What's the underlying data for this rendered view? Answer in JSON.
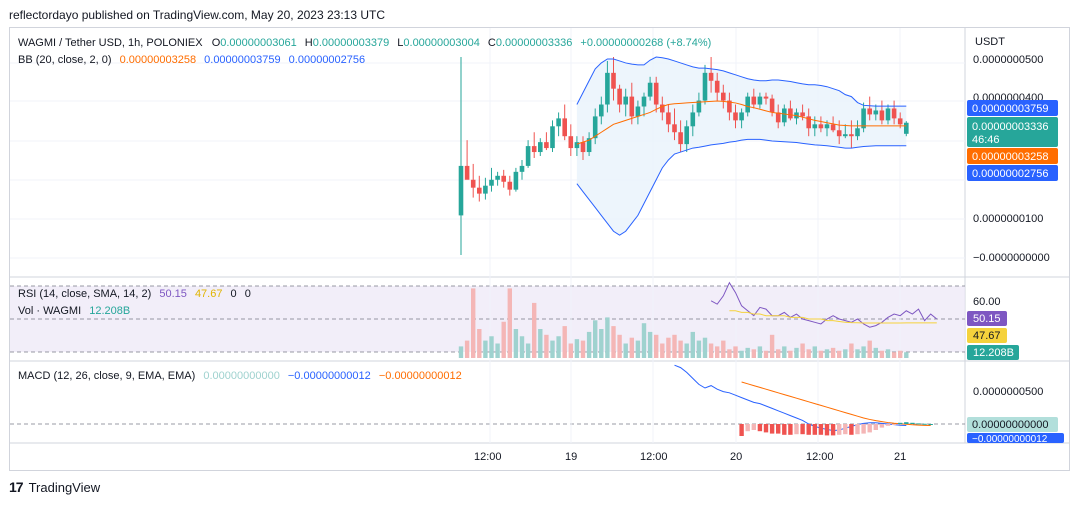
{
  "header": {
    "published": "reflectordayo published on TradingView.com, May 20, 2023 23:13 UTC"
  },
  "footer": {
    "brand": "TradingView",
    "logo_glyph": "17"
  },
  "colors": {
    "up": "#26a69a",
    "down": "#ef5350",
    "bb_band": "#2962ff",
    "bb_basis": "#ff6d00",
    "bb_fill": "#e8f2fb",
    "rsi": "#7e57c2",
    "rsi_sma": "#f5d23c",
    "macd": "#2962ff",
    "signal": "#ff6d00",
    "rsi_bg": "#ede7f6",
    "vol_up": "#9fd2cf",
    "vol_down": "#f4b6b6"
  },
  "legend": {
    "symbol": "WAGMI / Tether USD, 1h, POLONIEX",
    "o_label": "O",
    "o": "0.00000003061",
    "h_label": "H",
    "h": "0.00000003379",
    "l_label": "L",
    "l": "0.00000003004",
    "c_label": "C",
    "c": "0.00000003336",
    "chg": "+0.00000000268 (+8.74%)",
    "bb": "BB (20, close, 2, 0)",
    "bb_basis": "0.00000003258",
    "bb_upper": "0.00000003759",
    "bb_lower": "0.00000002756",
    "rsi": "RSI (14, close, SMA, 14, 2)",
    "rsi_val": "50.15",
    "rsi_sma": "47.67",
    "rsi_z1": "0",
    "rsi_z2": "0",
    "vol": "Vol · WAGMI",
    "vol_val": "12.208B",
    "macd": "MACD (12, 26, close, 9, EMA, EMA)",
    "macd_hist": "0.00000000000",
    "macd_line": "−0.00000000012",
    "macd_signal": "−0.00000000012"
  },
  "axis": {
    "currency": "USDT",
    "price_ticks": [
      "0.0000000500",
      "0.0000000400",
      "0.0000000100",
      "−0.0000000000"
    ],
    "rsi_ticks": [
      "60.00"
    ],
    "macd_ticks": [
      "0.0000000500"
    ],
    "time_ticks": [
      "12:00",
      "19",
      "12:00",
      "20",
      "12:00",
      "21"
    ]
  },
  "price_labels": {
    "upper": "0.00000003759",
    "close": "0.00000003336",
    "countdown": "46:46",
    "basis": "0.00000003258",
    "lower": "0.00000002756"
  },
  "rsi_labels": {
    "rsi": "50.15",
    "sma": "47.67",
    "vol": "12.208B"
  },
  "macd_labels": {
    "zero": "0.00000000000",
    "neg": "−0.00000000012"
  },
  "chart_data": [
    {
      "type": "candlestick",
      "title": "WAGMI / Tether USD, 1h, POLONIEX",
      "y_unit": "USDT (x1e-8)",
      "ylim": [
        -0.2,
        5.3
      ],
      "candles_ohlc": [
        [
          1.0,
          5.0,
          0.0,
          2.25
        ],
        [
          2.25,
          2.9,
          2.0,
          1.9
        ],
        [
          1.9,
          2.3,
          1.45,
          1.7
        ],
        [
          1.7,
          2.0,
          1.35,
          1.55
        ],
        [
          1.55,
          1.95,
          1.4,
          1.75
        ],
        [
          1.75,
          2.2,
          1.6,
          1.9
        ],
        [
          1.9,
          2.1,
          1.75,
          2.0
        ],
        [
          2.0,
          2.15,
          1.7,
          1.85
        ],
        [
          1.85,
          2.0,
          1.5,
          1.65
        ],
        [
          1.65,
          2.2,
          1.6,
          2.1
        ],
        [
          2.1,
          2.4,
          1.9,
          2.25
        ],
        [
          2.25,
          2.9,
          2.2,
          2.75
        ],
        [
          2.75,
          3.1,
          2.45,
          2.6
        ],
        [
          2.6,
          2.95,
          2.5,
          2.85
        ],
        [
          2.85,
          3.1,
          2.65,
          2.7
        ],
        [
          2.7,
          3.4,
          2.6,
          3.25
        ],
        [
          3.25,
          3.6,
          3.0,
          3.45
        ],
        [
          3.45,
          3.8,
          2.9,
          3.0
        ],
        [
          3.0,
          3.3,
          2.5,
          2.7
        ],
        [
          2.7,
          3.0,
          2.5,
          2.85
        ],
        [
          2.85,
          3.0,
          2.4,
          2.6
        ],
        [
          2.6,
          3.1,
          2.5,
          2.95
        ],
        [
          2.95,
          3.7,
          2.8,
          3.5
        ],
        [
          3.5,
          4.0,
          3.3,
          3.8
        ],
        [
          3.8,
          4.9,
          3.6,
          4.6
        ],
        [
          4.6,
          5.0,
          3.9,
          4.2
        ],
        [
          4.2,
          4.3,
          3.6,
          3.8
        ],
        [
          3.8,
          4.2,
          3.5,
          4.0
        ],
        [
          4.0,
          4.35,
          3.3,
          3.5
        ],
        [
          3.5,
          3.9,
          3.3,
          3.75
        ],
        [
          3.75,
          4.1,
          3.5,
          4.0
        ],
        [
          4.0,
          4.5,
          3.9,
          4.35
        ],
        [
          4.35,
          4.5,
          3.6,
          3.8
        ],
        [
          3.8,
          4.0,
          3.4,
          3.6
        ],
        [
          3.6,
          3.8,
          3.1,
          3.3
        ],
        [
          3.3,
          3.7,
          2.9,
          3.1
        ],
        [
          3.1,
          3.4,
          2.6,
          2.8
        ],
        [
          2.8,
          3.4,
          2.6,
          3.25
        ],
        [
          3.25,
          3.8,
          3.0,
          3.6
        ],
        [
          3.6,
          4.1,
          3.5,
          3.9
        ],
        [
          3.9,
          4.8,
          3.8,
          4.6
        ],
        [
          4.6,
          5.0,
          4.1,
          4.4
        ],
        [
          4.4,
          4.6,
          3.9,
          4.1
        ],
        [
          4.1,
          4.3,
          3.7,
          3.9
        ],
        [
          3.9,
          4.1,
          3.4,
          3.6
        ],
        [
          3.6,
          3.8,
          3.2,
          3.4
        ],
        [
          3.4,
          3.7,
          3.2,
          3.6
        ],
        [
          3.6,
          4.1,
          3.5,
          4.0
        ],
        [
          4.0,
          4.2,
          3.7,
          3.8
        ],
        [
          3.8,
          4.1,
          3.7,
          4.0
        ],
        [
          4.0,
          4.1,
          3.8,
          3.95
        ],
        [
          3.95,
          4.05,
          3.5,
          3.6
        ],
        [
          3.6,
          3.8,
          3.2,
          3.35
        ],
        [
          3.35,
          3.8,
          3.25,
          3.7
        ],
        [
          3.7,
          3.9,
          3.4,
          3.45
        ],
        [
          3.45,
          3.7,
          3.3,
          3.6
        ],
        [
          3.6,
          3.8,
          3.4,
          3.5
        ],
        [
          3.5,
          3.7,
          3.0,
          3.2
        ],
        [
          3.2,
          3.5,
          3.0,
          3.3
        ],
        [
          3.3,
          3.5,
          3.1,
          3.2
        ],
        [
          3.2,
          3.4,
          3.0,
          3.3
        ],
        [
          3.3,
          3.5,
          3.1,
          3.15
        ],
        [
          3.15,
          3.4,
          2.8,
          3.0
        ],
        [
          3.0,
          3.3,
          2.95,
          3.05
        ],
        [
          3.05,
          3.4,
          2.7,
          3.0
        ],
        [
          3.0,
          3.4,
          2.9,
          3.2
        ],
        [
          3.2,
          3.85,
          3.1,
          3.7
        ],
        [
          3.7,
          4.0,
          3.4,
          3.55
        ],
        [
          3.55,
          3.8,
          3.4,
          3.65
        ],
        [
          3.65,
          3.9,
          3.3,
          3.4
        ],
        [
          3.4,
          3.8,
          3.3,
          3.7
        ],
        [
          3.7,
          3.9,
          3.3,
          3.45
        ],
        [
          3.45,
          3.6,
          3.2,
          3.3
        ],
        [
          3.06,
          3.38,
          3.0,
          3.34
        ]
      ],
      "bb_start_index": 19,
      "bb_upper": [
        3.8,
        4.1,
        4.4,
        4.7,
        4.85,
        4.95,
        4.95,
        4.9,
        4.85,
        4.82,
        4.8,
        4.8,
        4.92,
        5.0,
        4.98,
        4.95,
        4.9,
        4.85,
        4.8,
        4.75,
        4.72,
        4.72,
        4.7,
        4.68,
        4.65,
        4.6,
        4.55,
        4.5,
        4.45,
        4.42,
        4.4,
        4.4,
        4.42,
        4.42,
        4.4,
        4.38,
        4.35,
        4.32,
        4.3,
        4.3,
        4.28,
        4.25,
        4.2,
        4.15,
        4.05,
        4.0,
        3.85,
        3.78,
        3.77,
        3.76,
        3.76,
        3.76,
        3.76,
        3.76,
        3.76
      ],
      "bb_basis": [
        2.8,
        2.85,
        2.9,
        3.0,
        3.1,
        3.2,
        3.3,
        3.35,
        3.4,
        3.45,
        3.5,
        3.55,
        3.6,
        3.68,
        3.75,
        3.8,
        3.82,
        3.83,
        3.84,
        3.85,
        3.86,
        3.87,
        3.88,
        3.89,
        3.88,
        3.86,
        3.84,
        3.8,
        3.75,
        3.72,
        3.68,
        3.64,
        3.6,
        3.58,
        3.56,
        3.54,
        3.52,
        3.48,
        3.44,
        3.4,
        3.37,
        3.34,
        3.31,
        3.28,
        3.27,
        3.26,
        3.26,
        3.26,
        3.26,
        3.26,
        3.26,
        3.26,
        3.26,
        3.26,
        3.26
      ],
      "bb_lower": [
        1.8,
        1.6,
        1.4,
        1.2,
        1.0,
        0.8,
        0.6,
        0.5,
        0.6,
        0.8,
        1.0,
        1.3,
        1.6,
        1.9,
        2.2,
        2.4,
        2.55,
        2.6,
        2.65,
        2.7,
        2.72,
        2.75,
        2.78,
        2.8,
        2.82,
        2.85,
        2.87,
        2.9,
        2.92,
        2.92,
        2.92,
        2.9,
        2.88,
        2.87,
        2.86,
        2.85,
        2.84,
        2.82,
        2.8,
        2.78,
        2.77,
        2.76,
        2.74,
        2.72,
        2.7,
        2.7,
        2.72,
        2.74,
        2.75,
        2.76,
        2.76,
        2.76,
        2.76,
        2.76,
        2.76
      ]
    },
    {
      "type": "line",
      "title": "RSI (14, close, SMA, 14, 2)",
      "ylim": [
        30,
        80
      ],
      "rsi_start_index": 41,
      "rsi": [
        61,
        59,
        64,
        72,
        66,
        58,
        55,
        52,
        57,
        56,
        52,
        52,
        54,
        51,
        53,
        50,
        49,
        48,
        47,
        50,
        52,
        50,
        49,
        48,
        50,
        47,
        45,
        46,
        48,
        51,
        53,
        52,
        55,
        53,
        56,
        49,
        53,
        50
      ],
      "sma_start_index": 44,
      "sma": [
        55,
        55,
        54,
        54,
        53,
        53,
        52,
        52,
        52,
        52,
        51,
        51,
        51,
        50,
        50,
        50,
        49,
        49,
        48.5,
        48,
        47.8,
        47.7,
        47.6,
        47.6,
        47.6,
        47.6,
        47.6,
        47.6,
        47.6,
        47.67,
        47.67,
        47.67,
        47.67,
        47.67,
        47.67
      ]
    },
    {
      "type": "bar",
      "title": "Vol · WAGMI",
      "ylim": [
        0,
        5
      ],
      "volume": [
        0.8,
        1.2,
        4.8,
        2.0,
        1.2,
        1.5,
        1.0,
        2.5,
        4.8,
        2.0,
        1.5,
        1.0,
        3.8,
        2.0,
        1.6,
        1.2,
        1.5,
        2.2,
        1.0,
        1.3,
        1.2,
        1.8,
        2.6,
        2.0,
        2.8,
        2.2,
        1.6,
        1.0,
        1.4,
        1.2,
        2.4,
        1.8,
        1.6,
        1.0,
        1.4,
        1.6,
        1.2,
        1.0,
        1.8,
        1.2,
        1.4,
        1.0,
        0.8,
        1.2,
        0.6,
        0.8,
        0.5,
        0.7,
        0.6,
        0.8,
        0.5,
        1.6,
        0.6,
        0.8,
        0.5,
        0.7,
        1.0,
        0.6,
        0.8,
        0.5,
        0.6,
        0.7,
        0.5,
        0.6,
        1.0,
        0.6,
        0.8,
        1.2,
        0.7,
        0.5,
        0.6,
        0.4,
        0.5,
        0.4
      ]
    },
    {
      "type": "line",
      "title": "MACD (12, 26, close, 9, EMA, EMA)",
      "ylim": [
        -1.6,
        5.5
      ],
      "macd_start_index": 35,
      "macd": [
        4.9,
        4.7,
        4.3,
        3.8,
        3.3,
        3.0,
        3.2,
        2.9,
        2.7,
        2.6,
        2.4,
        2.2,
        2.0,
        1.8,
        1.7,
        1.5,
        1.3,
        1.1,
        0.9,
        0.7,
        0.5,
        0.3,
        0.0,
        -0.2,
        -0.35,
        -0.45,
        -0.55,
        -0.5,
        -0.35,
        -0.2,
        -0.05,
        0.05,
        0.1,
        0.1,
        0.05,
        0.0,
        -0.05,
        -0.1,
        -0.12
      ],
      "signal_start_index": 46,
      "signal": [
        3.5,
        3.35,
        3.2,
        3.05,
        2.9,
        2.75,
        2.6,
        2.45,
        2.3,
        2.15,
        2.0,
        1.85,
        1.7,
        1.55,
        1.4,
        1.25,
        1.1,
        0.95,
        0.8,
        0.65,
        0.5,
        0.38,
        0.28,
        0.2,
        0.12,
        0.06,
        0.02,
        -0.02,
        -0.06,
        -0.09,
        -0.11,
        -0.12
      ],
      "hist_start_index": 46,
      "hist": [
        -1.0,
        -0.6,
        -0.5,
        -0.6,
        -0.7,
        -0.8,
        -0.8,
        -0.9,
        -0.9,
        -0.85,
        -0.85,
        -0.9,
        -0.9,
        -0.9,
        -0.95,
        -0.95,
        -0.9,
        -0.85,
        -0.9,
        -0.85,
        -0.8,
        -0.7,
        -0.5,
        -0.3,
        -0.15,
        -0.05,
        0.1,
        0.15,
        0.1,
        0.05,
        0.02,
        0.0
      ]
    }
  ]
}
